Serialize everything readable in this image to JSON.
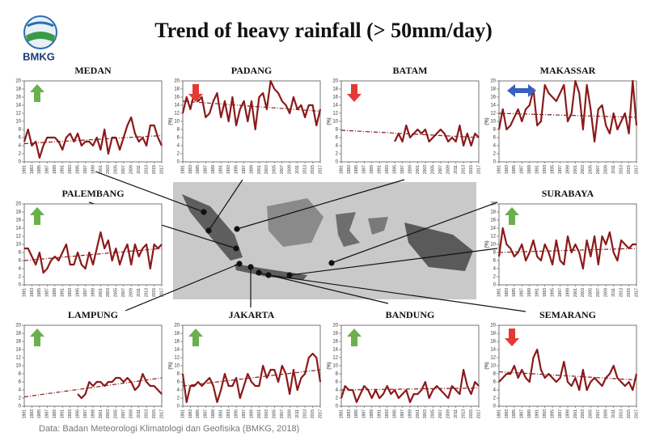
{
  "title": "Trend of heavy rainfall (> 50mm/day)",
  "logo_text": "BMKG",
  "source": "Data: Badan Meteorologi Klimatologi dan Geofisika (BMKG, 2018)",
  "chart_data": [
    {
      "type": "line",
      "title": "MEDAN",
      "trend_arrow": "up",
      "arrow_color": "#6ab04c",
      "color": "#8b1a1a",
      "x": [
        1981,
        1982,
        1983,
        1984,
        1985,
        1986,
        1987,
        1988,
        1989,
        1990,
        1991,
        1992,
        1993,
        1994,
        1995,
        1996,
        1997,
        1998,
        1999,
        2000,
        2001,
        2002,
        2003,
        2004,
        2005,
        2006,
        2007,
        2008,
        2009,
        2010,
        2011,
        2012,
        2013,
        2014,
        2015,
        2016,
        2017
      ],
      "values": [
        5,
        8,
        4,
        5,
        1,
        4,
        6,
        6,
        6,
        5,
        3,
        6,
        7,
        5,
        7,
        4,
        5,
        5,
        4,
        6,
        3,
        8,
        2,
        6,
        6,
        3,
        6,
        9,
        11,
        7,
        5,
        6,
        4,
        9,
        9,
        6,
        4
      ],
      "trend": {
        "x": [
          1981,
          2017
        ],
        "values": [
          4.5,
          6.5
        ]
      },
      "xlim": [
        1981,
        2017
      ],
      "xticks": [
        1981,
        1983,
        1985,
        1987,
        1989,
        1991,
        1993,
        1995,
        1997,
        1999,
        2001,
        2003,
        2005,
        2007,
        2009,
        2011,
        2013,
        2015,
        2017
      ],
      "ylim": [
        0,
        20
      ],
      "yticks": [
        0,
        2,
        4,
        6,
        8,
        10,
        12,
        14,
        16,
        18,
        20
      ]
    },
    {
      "type": "line",
      "title": "PADANG",
      "ylabel": "(%)",
      "trend_arrow": "down",
      "arrow_color": "#e53935",
      "color": "#8b1a1a",
      "x": [
        1981,
        1982,
        1983,
        1984,
        1985,
        1986,
        1987,
        1988,
        1989,
        1990,
        1991,
        1992,
        1993,
        1994,
        1995,
        1996,
        1997,
        1998,
        1999,
        2000,
        2001,
        2002,
        2003,
        2004,
        2005,
        2006,
        2007,
        2008,
        2009,
        2010,
        2011,
        2012,
        2013,
        2014,
        2015,
        2016,
        2017
      ],
      "values": [
        12,
        16,
        13,
        17,
        15,
        16,
        11,
        12,
        15,
        17,
        11,
        15,
        10,
        16,
        9,
        13,
        15,
        10,
        15,
        8,
        16,
        17,
        13,
        20,
        18,
        17,
        15,
        14,
        12,
        16,
        13,
        14,
        11,
        14,
        14,
        9,
        13
      ],
      "trend": {
        "x": [
          1981,
          2017
        ],
        "values": [
          15,
          12.5
        ]
      },
      "xlim": [
        1981,
        2017
      ],
      "xticks": [
        1981,
        1983,
        1985,
        1987,
        1989,
        1991,
        1993,
        1995,
        1997,
        1999,
        2001,
        2003,
        2005,
        2007,
        2009,
        2011,
        2013,
        2015,
        2017
      ],
      "ylim": [
        0,
        20
      ],
      "yticks": [
        0,
        2,
        4,
        6,
        8,
        10,
        12,
        14,
        16,
        18,
        20
      ]
    },
    {
      "type": "line",
      "title": "BATAM",
      "ylabel": "(%)",
      "trend_arrow": "down",
      "arrow_color": "#e53935",
      "color": "#8b1a1a",
      "x": [
        1981,
        1982,
        1983,
        1984,
        1985,
        1986,
        1987,
        1988,
        1989,
        1990,
        1991,
        1992,
        1993,
        1994,
        1995,
        1996,
        1997,
        1998,
        1999,
        2000,
        2001,
        2002,
        2003,
        2004,
        2005,
        2006,
        2007,
        2008,
        2009,
        2010,
        2011,
        2012,
        2013,
        2014,
        2015,
        2016,
        2017
      ],
      "values": [
        null,
        null,
        null,
        null,
        null,
        null,
        null,
        null,
        null,
        null,
        null,
        null,
        null,
        null,
        5,
        7,
        5,
        9,
        6,
        7,
        8,
        7,
        8,
        5,
        6,
        7,
        8,
        7,
        5,
        6,
        5,
        9,
        4,
        7,
        4,
        7,
        6
      ],
      "trend": {
        "x": [
          1981,
          2017
        ],
        "values": [
          7.8,
          6
        ]
      },
      "xlim": [
        1981,
        2017
      ],
      "xticks": [
        1981,
        1983,
        1985,
        1987,
        1989,
        1991,
        1993,
        1995,
        1997,
        1999,
        2001,
        2003,
        2005,
        2007,
        2009,
        2011,
        2013,
        2015,
        2017
      ],
      "ylim": [
        0,
        20
      ],
      "yticks": [
        0,
        2,
        4,
        6,
        8,
        10,
        12,
        14,
        16,
        18,
        20
      ]
    },
    {
      "type": "line",
      "title": "MAKASSAR",
      "ylabel": "(%)",
      "trend_arrow": "both",
      "arrow_color": "#3a5fbf",
      "color": "#8b1a1a",
      "x": [
        1981,
        1982,
        1983,
        1984,
        1985,
        1986,
        1987,
        1988,
        1989,
        1990,
        1991,
        1992,
        1993,
        1994,
        1995,
        1996,
        1997,
        1998,
        1999,
        2000,
        2001,
        2002,
        2003,
        2004,
        2005,
        2006,
        2007,
        2008,
        2009,
        2010,
        2011,
        2012,
        2013,
        2014,
        2015,
        2016,
        2017
      ],
      "values": [
        8,
        13,
        8,
        9,
        11,
        13,
        10,
        13,
        14,
        18,
        9,
        10,
        19,
        17,
        16,
        15,
        17,
        19,
        10,
        12,
        20,
        17,
        8,
        19,
        13,
        5,
        13,
        14,
        9,
        7,
        12,
        8,
        10,
        12,
        7,
        20,
        9
      ],
      "trend": {
        "x": [
          1981,
          2017
        ],
        "values": [
          12,
          11
        ]
      },
      "xlim": [
        1981,
        2017
      ],
      "xticks": [
        1981,
        1983,
        1985,
        1987,
        1989,
        1991,
        1993,
        1995,
        1997,
        1999,
        2001,
        2003,
        2005,
        2007,
        2009,
        2011,
        2013,
        2015,
        2017
      ],
      "ylim": [
        0,
        20
      ],
      "yticks": [
        0,
        2,
        4,
        6,
        8,
        10,
        12,
        14,
        16,
        18,
        20
      ]
    },
    {
      "type": "line",
      "title": "PALEMBANG",
      "trend_arrow": "up",
      "arrow_color": "#6ab04c",
      "color": "#8b1a1a",
      "x": [
        1981,
        1982,
        1983,
        1984,
        1985,
        1986,
        1987,
        1988,
        1989,
        1990,
        1991,
        1992,
        1993,
        1994,
        1995,
        1996,
        1997,
        1998,
        1999,
        2000,
        2001,
        2002,
        2003,
        2004,
        2005,
        2006,
        2007,
        2008,
        2009,
        2010,
        2011,
        2012,
        2013,
        2014,
        2015,
        2016,
        2017
      ],
      "values": [
        9,
        9,
        7,
        5,
        8,
        3,
        4,
        6,
        7,
        6,
        8,
        10,
        5,
        5,
        8,
        5,
        4,
        8,
        5,
        9,
        13,
        9,
        11,
        6,
        9,
        5,
        8,
        10,
        5,
        10,
        7,
        9,
        10,
        4,
        10,
        9,
        10
      ],
      "trend": {
        "x": [
          1981,
          2017
        ],
        "values": [
          6,
          9
        ]
      },
      "xlim": [
        1981,
        2017
      ],
      "xticks": [
        1981,
        1983,
        1985,
        1987,
        1989,
        1991,
        1993,
        1995,
        1997,
        1999,
        2001,
        2003,
        2005,
        2007,
        2009,
        2011,
        2013,
        2015,
        2017
      ],
      "ylim": [
        0,
        20
      ],
      "yticks": [
        0,
        2,
        4,
        6,
        8,
        10,
        12,
        14,
        16,
        18,
        20
      ]
    },
    {
      "type": "line",
      "title": "SURABAYA",
      "ylabel": "(%)",
      "trend_arrow": "up",
      "arrow_color": "#6ab04c",
      "color": "#8b1a1a",
      "x": [
        1981,
        1982,
        1983,
        1984,
        1985,
        1986,
        1987,
        1988,
        1989,
        1990,
        1991,
        1992,
        1993,
        1994,
        1995,
        1996,
        1997,
        1998,
        1999,
        2000,
        2001,
        2002,
        2003,
        2004,
        2005,
        2006,
        2007,
        2008,
        2009,
        2010,
        2011,
        2012,
        2013,
        2014,
        2015,
        2016,
        2017
      ],
      "values": [
        7,
        14,
        10,
        9,
        7,
        8,
        10,
        6,
        8,
        11,
        7,
        6,
        10,
        8,
        5,
        11,
        6,
        5,
        12,
        8,
        10,
        8,
        4,
        11,
        7,
        12,
        5,
        12,
        10,
        13,
        8,
        6,
        11,
        10,
        9,
        10,
        10
      ],
      "trend": {
        "x": [
          1981,
          2017
        ],
        "values": [
          8,
          9
        ]
      },
      "xlim": [
        1981,
        2017
      ],
      "xticks": [
        1981,
        1983,
        1985,
        1987,
        1989,
        1991,
        1993,
        1995,
        1997,
        1999,
        2001,
        2003,
        2005,
        2007,
        2009,
        2011,
        2013,
        2015,
        2017
      ],
      "ylim": [
        0,
        20
      ],
      "yticks": [
        0,
        2,
        4,
        6,
        8,
        10,
        12,
        14,
        16,
        18,
        20
      ]
    },
    {
      "type": "line",
      "title": "LAMPUNG",
      "trend_arrow": "up",
      "arrow_color": "#6ab04c",
      "color": "#8b1a1a",
      "x": [
        1981,
        1982,
        1983,
        1984,
        1985,
        1986,
        1987,
        1988,
        1989,
        1990,
        1991,
        1992,
        1993,
        1994,
        1995,
        1996,
        1997,
        1998,
        1999,
        2000,
        2001,
        2002,
        2003,
        2004,
        2005,
        2006,
        2007,
        2008,
        2009,
        2010,
        2011,
        2012,
        2013,
        2014,
        2015,
        2016,
        2017
      ],
      "values": [
        null,
        null,
        null,
        null,
        null,
        null,
        null,
        null,
        null,
        null,
        null,
        null,
        null,
        null,
        3,
        2,
        3,
        6,
        5,
        6,
        6,
        5,
        6,
        6,
        7,
        7,
        6,
        7,
        6,
        4,
        5,
        8,
        6,
        5,
        5,
        4,
        3
      ],
      "trend": {
        "x": [
          1981,
          2017
        ],
        "values": [
          2.3,
          7
        ]
      },
      "xlim": [
        1981,
        2017
      ],
      "xticks": [
        1981,
        1983,
        1985,
        1987,
        1989,
        1991,
        1993,
        1995,
        1997,
        1999,
        2001,
        2003,
        2005,
        2007,
        2009,
        2011,
        2013,
        2015,
        2017
      ],
      "ylim": [
        0,
        20
      ],
      "yticks": [
        0,
        2,
        4,
        6,
        8,
        10,
        12,
        14,
        16,
        18,
        20
      ]
    },
    {
      "type": "line",
      "title": "JAKARTA",
      "ylabel": "(%)",
      "trend_arrow": "up",
      "arrow_color": "#6ab04c",
      "color": "#8b1a1a",
      "x": [
        1981,
        1982,
        1983,
        1984,
        1985,
        1986,
        1987,
        1988,
        1989,
        1990,
        1991,
        1992,
        1993,
        1994,
        1995,
        1996,
        1997,
        1998,
        1999,
        2000,
        2001,
        2002,
        2003,
        2004,
        2005,
        2006,
        2007,
        2008,
        2009,
        2010,
        2011,
        2012,
        2013,
        2014,
        2015,
        2016,
        2017
      ],
      "values": [
        8,
        1,
        5,
        5,
        6,
        5,
        6,
        7,
        5,
        1,
        4,
        8,
        5,
        5,
        7,
        2,
        5,
        8,
        6,
        5,
        5,
        10,
        7,
        9,
        9,
        6,
        10,
        8,
        3,
        9,
        4,
        7,
        8,
        12,
        13,
        12,
        6
      ],
      "trend": {
        "x": [
          1981,
          2017
        ],
        "values": [
          5,
          9
        ]
      },
      "xlim": [
        1981,
        2017
      ],
      "xticks": [
        1981,
        1983,
        1985,
        1987,
        1989,
        1991,
        1993,
        1995,
        1997,
        1999,
        2001,
        2003,
        2005,
        2007,
        2009,
        2011,
        2013,
        2015,
        2017
      ],
      "ylim": [
        0,
        20
      ],
      "yticks": [
        0,
        2,
        4,
        6,
        8,
        10,
        12,
        14,
        16,
        18,
        20
      ]
    },
    {
      "type": "line",
      "title": "BANDUNG",
      "ylabel": "(%)",
      "trend_arrow": "up",
      "arrow_color": "#6ab04c",
      "color": "#8b1a1a",
      "x": [
        1981,
        1982,
        1983,
        1984,
        1985,
        1986,
        1987,
        1988,
        1989,
        1990,
        1991,
        1992,
        1993,
        1994,
        1995,
        1996,
        1997,
        1998,
        1999,
        2000,
        2001,
        2002,
        2003,
        2004,
        2005,
        2006,
        2007,
        2008,
        2009,
        2010,
        2011,
        2012,
        2013,
        2014,
        2015,
        2016,
        2017
      ],
      "values": [
        2,
        5,
        4,
        4,
        1,
        3,
        5,
        4,
        2,
        4,
        2,
        3,
        5,
        3,
        4,
        2,
        3,
        4,
        1,
        3,
        3,
        4,
        6,
        2,
        4,
        5,
        4,
        3,
        2,
        5,
        4,
        3,
        9,
        5,
        3,
        6,
        5
      ],
      "trend": {
        "x": [
          1981,
          2017
        ],
        "values": [
          4,
          4.5
        ]
      },
      "xlim": [
        1981,
        2017
      ],
      "xticks": [
        1981,
        1983,
        1985,
        1987,
        1989,
        1991,
        1993,
        1995,
        1997,
        1999,
        2001,
        2003,
        2005,
        2007,
        2009,
        2011,
        2013,
        2015,
        2017
      ],
      "ylim": [
        0,
        20
      ],
      "yticks": [
        0,
        2,
        4,
        6,
        8,
        10,
        12,
        14,
        16,
        18,
        20
      ]
    },
    {
      "type": "line",
      "title": "SEMARANG",
      "ylabel": "(%)",
      "trend_arrow": "down",
      "arrow_color": "#e53935",
      "color": "#8b1a1a",
      "x": [
        1981,
        1982,
        1983,
        1984,
        1985,
        1986,
        1987,
        1988,
        1989,
        1990,
        1991,
        1992,
        1993,
        1994,
        1995,
        1996,
        1997,
        1998,
        1999,
        2000,
        2001,
        2002,
        2003,
        2004,
        2005,
        2006,
        2007,
        2008,
        2009,
        2010,
        2011,
        2012,
        2013,
        2014,
        2015,
        2016,
        2017
      ],
      "values": [
        6,
        7,
        8,
        8,
        10,
        7,
        9,
        7,
        6,
        12,
        14,
        9,
        7,
        8,
        7,
        6,
        7,
        11,
        6,
        5,
        7,
        4,
        9,
        4,
        6,
        7,
        6,
        5,
        7,
        8,
        10,
        7,
        6,
        5,
        6,
        4,
        8
      ],
      "trend": {
        "x": [
          1981,
          2017
        ],
        "values": [
          8.5,
          6.5
        ]
      },
      "xlim": [
        1981,
        2017
      ],
      "xticks": [
        1981,
        1983,
        1985,
        1987,
        1989,
        1991,
        1993,
        1995,
        1997,
        1999,
        2001,
        2003,
        2005,
        2007,
        2009,
        2011,
        2013,
        2015,
        2017
      ],
      "ylim": [
        0,
        20
      ],
      "yticks": [
        0,
        2,
        4,
        6,
        8,
        10,
        12,
        14,
        16,
        18,
        20
      ]
    }
  ]
}
